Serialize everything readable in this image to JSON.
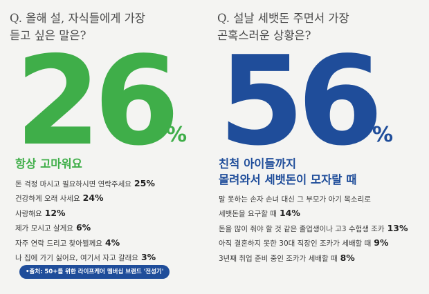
{
  "colors": {
    "green": "#3fae49",
    "blue": "#1f4d9a",
    "text": "#3c3c3c",
    "background": "#f4f4f2"
  },
  "chart_data": [
    {
      "type": "table",
      "title": "Q. 올해 설, 자식들에게 가장\n듣고 싶은 말은?",
      "headline_value": "26",
      "headline_unit": "%",
      "headline_label": "항상 고마워요",
      "categories": [
        "항상 고마워요",
        "돈 걱정 마시고 필요하시면 연락주세요",
        "건강하게 오래 사세요",
        "사랑해요",
        "제가 모시고 살게요",
        "자주 연락 드리고 찾아뵐께요",
        "나 집에 가기 싫어요, 여기서 자고 갈래요"
      ],
      "values": [
        26,
        25,
        24,
        12,
        6,
        4,
        3
      ],
      "value_labels": [
        "26%",
        "25%",
        "24%",
        "12%",
        "6%",
        "4%",
        "3%"
      ]
    },
    {
      "type": "table",
      "title": "Q. 설날 세뱃돈 주면서 가장\n곤혹스러운 상황은?",
      "headline_value": "56",
      "headline_unit": "%",
      "headline_label": "친척 아이들까지\n몰려와서 세뱃돈이 모자랄 때",
      "categories": [
        "친척 아이들까지 몰려와서 세뱃돈이 모자랄 때",
        "말 못하는 손자 손녀 대신 그 부모가 아기 목소리로 세뱃돈을 요구할 때",
        "돈을 많이 줘야 할 것 같은 졸업생이나 고3 수험생 조카",
        "아직 결혼하지 못한 30대 직장인 조카가 세배할 때",
        "3년째 취업 준비 중인 조카가 세배할 때"
      ],
      "values": [
        56,
        14,
        13,
        9,
        8
      ],
      "value_labels": [
        "56%",
        "14%",
        "13%",
        "9%",
        "8%"
      ]
    }
  ],
  "left": {
    "items": [
      {
        "label": "돈 걱정 마시고 필요하시면 연락주세요",
        "pct": "25%"
      },
      {
        "label": "건강하게 오래 사세요",
        "pct": "24%"
      },
      {
        "label": "사랑해요",
        "pct": "12%"
      },
      {
        "label": "제가 모시고 살게요",
        "pct": "6%"
      },
      {
        "label": "자주 연락 드리고 찾아뵐께요",
        "pct": "4%"
      },
      {
        "label": "나 집에 가기 싫어요, 여기서 자고 갈래요",
        "pct": "3%"
      }
    ]
  },
  "right": {
    "items": [
      {
        "label": "말 못하는 손자 손녀 대신 그 부모가 아기 목소리로",
        "pct": ""
      },
      {
        "label": "세뱃돈을 요구할 때",
        "pct": "14%"
      },
      {
        "label": "돈을 많이 줘야 할 것 같은 졸업생이나 고3 수험생 조카",
        "pct": "13%"
      },
      {
        "label": "아직 결혼하지 못한 30대 직장인 조카가 세배할 때",
        "pct": "9%"
      },
      {
        "label": "3년째 취업 준비 중인 조카가 세배할 때",
        "pct": "8%"
      }
    ]
  },
  "source": "•출처: 50+를 위한 라이프케어 멤버십 브랜드 '전성기'"
}
